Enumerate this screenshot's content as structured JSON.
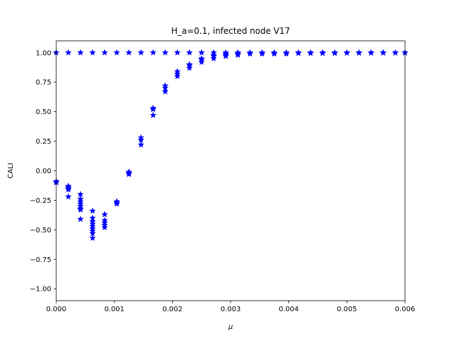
{
  "chart_data": {
    "type": "scatter",
    "title": "H_a=0.1, infected node V17",
    "xlabel": "μ",
    "ylabel": "CALI",
    "xlim": [
      0,
      0.006
    ],
    "ylim": [
      -1.1,
      1.1
    ],
    "xticks": [
      0,
      0.001,
      0.002,
      0.003,
      0.004,
      0.005,
      0.006
    ],
    "xtick_labels": [
      "0.000",
      "0.001",
      "0.002",
      "0.003",
      "0.004",
      "0.005",
      "0.006"
    ],
    "yticks": [
      -1.0,
      -0.75,
      -0.5,
      -0.25,
      0.0,
      0.25,
      0.5,
      0.75,
      1.0
    ],
    "ytick_labels": [
      "−1.00",
      "−0.75",
      "−0.50",
      "−0.25",
      "0.00",
      "0.25",
      "0.50",
      "0.75",
      "1.00"
    ],
    "marker": "star",
    "color": "#0000ff",
    "grid": false,
    "series": [
      {
        "name": "",
        "points": [
          [
            0.0,
            1.0
          ],
          [
            0.0002083,
            1.0
          ],
          [
            0.0004167,
            1.0
          ],
          [
            0.000625,
            1.0
          ],
          [
            0.0008333,
            1.0
          ],
          [
            0.0010417,
            1.0
          ],
          [
            0.00125,
            1.0
          ],
          [
            0.0014583,
            1.0
          ],
          [
            0.0016667,
            1.0
          ],
          [
            0.001875,
            1.0
          ],
          [
            0.0020833,
            1.0
          ],
          [
            0.0022917,
            1.0
          ],
          [
            0.0025,
            1.0
          ],
          [
            0.0027083,
            1.0
          ],
          [
            0.0029167,
            1.0
          ],
          [
            0.003125,
            1.0
          ],
          [
            0.0033333,
            1.0
          ],
          [
            0.0035417,
            1.0
          ],
          [
            0.00375,
            1.0
          ],
          [
            0.0039583,
            1.0
          ],
          [
            0.0041667,
            1.0
          ],
          [
            0.004375,
            1.0
          ],
          [
            0.0045833,
            1.0
          ],
          [
            0.0047917,
            1.0
          ],
          [
            0.005,
            1.0
          ],
          [
            0.0052083,
            1.0
          ],
          [
            0.0054167,
            1.0
          ],
          [
            0.005625,
            1.0
          ],
          [
            0.0058333,
            1.0
          ],
          [
            0.006,
            1.0
          ],
          [
            0.0,
            -0.09
          ],
          [
            0.0,
            -0.1
          ],
          [
            0.0002083,
            -0.13
          ],
          [
            0.0002083,
            -0.14
          ],
          [
            0.0002083,
            -0.15
          ],
          [
            0.0002083,
            -0.16
          ],
          [
            0.0002083,
            -0.22
          ],
          [
            0.0004167,
            -0.2
          ],
          [
            0.0004167,
            -0.24
          ],
          [
            0.0004167,
            -0.26
          ],
          [
            0.0004167,
            -0.28
          ],
          [
            0.0004167,
            -0.3
          ],
          [
            0.0004167,
            -0.32
          ],
          [
            0.0004167,
            -0.33
          ],
          [
            0.0004167,
            -0.41
          ],
          [
            0.000625,
            -0.34
          ],
          [
            0.000625,
            -0.4
          ],
          [
            0.000625,
            -0.43
          ],
          [
            0.000625,
            -0.45
          ],
          [
            0.000625,
            -0.47
          ],
          [
            0.000625,
            -0.49
          ],
          [
            0.000625,
            -0.51
          ],
          [
            0.000625,
            -0.53
          ],
          [
            0.000625,
            -0.57
          ],
          [
            0.0008333,
            -0.37
          ],
          [
            0.0008333,
            -0.42
          ],
          [
            0.0008333,
            -0.44
          ],
          [
            0.0008333,
            -0.46
          ],
          [
            0.0008333,
            -0.48
          ],
          [
            0.0010417,
            -0.26
          ],
          [
            0.0010417,
            -0.27
          ],
          [
            0.0010417,
            -0.28
          ],
          [
            0.00125,
            -0.01
          ],
          [
            0.00125,
            -0.02
          ],
          [
            0.00125,
            -0.03
          ],
          [
            0.0014583,
            0.22
          ],
          [
            0.0014583,
            0.26
          ],
          [
            0.0014583,
            0.28
          ],
          [
            0.0016667,
            0.47
          ],
          [
            0.0016667,
            0.52
          ],
          [
            0.0016667,
            0.53
          ],
          [
            0.001875,
            0.67
          ],
          [
            0.001875,
            0.7
          ],
          [
            0.001875,
            0.72
          ],
          [
            0.0020833,
            0.8
          ],
          [
            0.0020833,
            0.82
          ],
          [
            0.0020833,
            0.84
          ],
          [
            0.0022917,
            0.87
          ],
          [
            0.0022917,
            0.89
          ],
          [
            0.0022917,
            0.9
          ],
          [
            0.0025,
            0.92
          ],
          [
            0.0025,
            0.94
          ],
          [
            0.0025,
            0.95
          ],
          [
            0.0027083,
            0.95
          ],
          [
            0.0027083,
            0.97
          ],
          [
            0.0027083,
            0.98
          ],
          [
            0.0029167,
            0.97
          ],
          [
            0.0029167,
            0.98
          ],
          [
            0.0029167,
            0.99
          ],
          [
            0.003125,
            0.98
          ],
          [
            0.003125,
            0.99
          ],
          [
            0.0033333,
            0.99
          ],
          [
            0.0035417,
            0.99
          ],
          [
            0.00375,
            0.99
          ],
          [
            0.0039583,
            0.99
          ],
          [
            0.0041667,
            0.995
          ],
          [
            0.004375,
            0.995
          ],
          [
            0.0045833,
            0.995
          ],
          [
            0.0047917,
            0.995
          ],
          [
            0.005,
            0.997
          ],
          [
            0.0052083,
            0.997
          ],
          [
            0.0054167,
            0.997
          ],
          [
            0.005625,
            0.998
          ],
          [
            0.0058333,
            0.998
          ],
          [
            0.006,
            0.999
          ]
        ]
      }
    ]
  }
}
